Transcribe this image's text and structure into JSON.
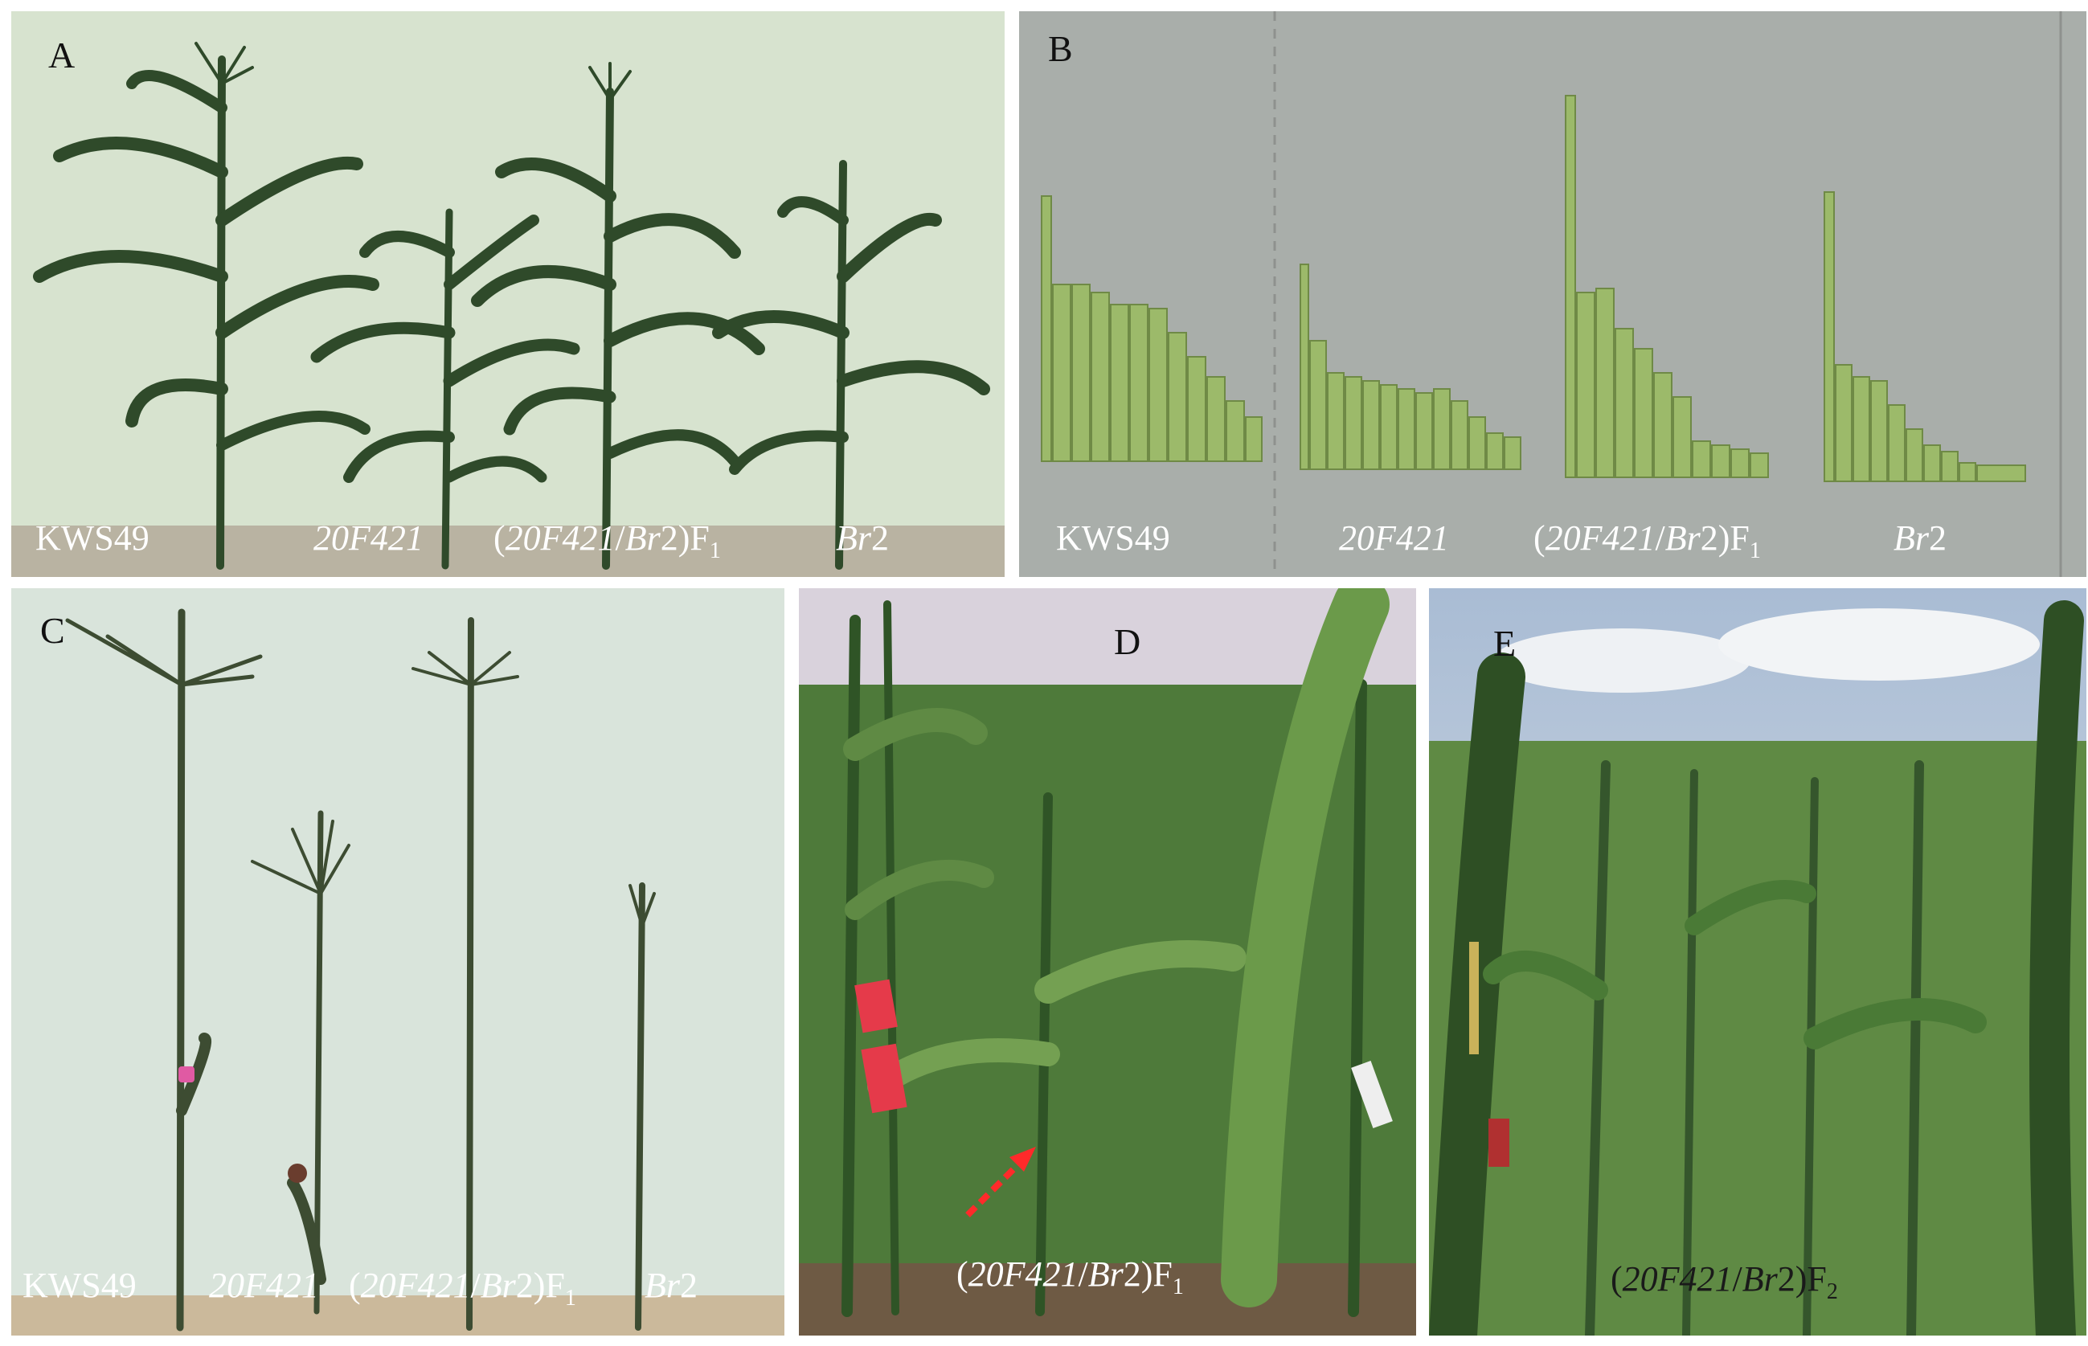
{
  "panels": {
    "A": {
      "letter": "A",
      "labels": [
        {
          "text": "KWS49"
        },
        {
          "text": "20F421"
        },
        {
          "open": "(",
          "italic": "20F421",
          "slash": "/",
          "italic2": "Br",
          "rest": "2)F",
          "sub": "1"
        },
        {
          "italic": "Br",
          "rest": "2"
        }
      ]
    },
    "B": {
      "letter": "B",
      "labels": [
        {
          "text": "KWS49"
        },
        {
          "text": "20F421"
        },
        {
          "open": "(",
          "italic": "20F421",
          "slash": "/",
          "italic2": "Br",
          "rest": "2)F",
          "sub": "1"
        },
        {
          "italic": "Br",
          "rest": "2"
        }
      ]
    },
    "C": {
      "letter": "C",
      "labels": [
        {
          "text": "KWS49"
        },
        {
          "text": "20F421"
        },
        {
          "open": "(",
          "italic": "20F421",
          "slash": "/",
          "italic2": "Br",
          "rest": "2)F",
          "sub": "1"
        },
        {
          "italic": "Br",
          "rest": "2"
        }
      ]
    },
    "D": {
      "letter": "D",
      "label": {
        "open": "(",
        "italic": "20F421",
        "slash": "/",
        "italic2": "Br",
        "rest": "2)F",
        "sub": "1"
      }
    },
    "E": {
      "letter": "E",
      "label": {
        "open": "(",
        "italic": "20F421",
        "slash": "/",
        "italic2": "Br",
        "rest": "2)F",
        "sub": "2"
      }
    }
  },
  "colors": {
    "wall_a": "#d7e3cf",
    "wall_b": "#a9aeaa",
    "wall_c": "#d9e4db",
    "leaf": "#2f4a2a",
    "stem_b": "#9cba6a",
    "field_dark": "#35562c",
    "field_mid": "#5f8a44",
    "sky": "#d9d2dc",
    "sky_e": "#b9c8d9"
  }
}
